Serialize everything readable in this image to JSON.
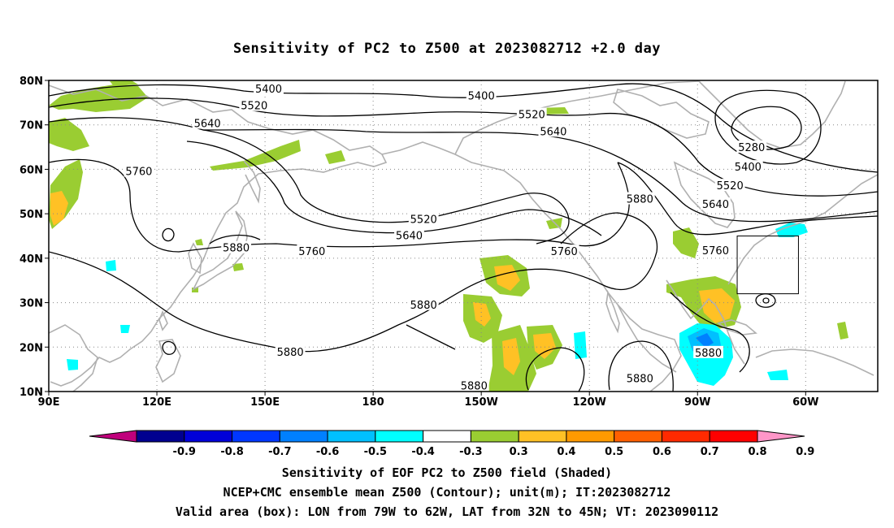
{
  "title": "Sensitivity of PC2 to Z500 at 2023082712 +2.0 day",
  "captions": [
    "Sensitivity of EOF PC2 to Z500 field (Shaded)",
    "NCEP+CMC ensemble mean Z500 (Contour); unit(m); IT:2023082712",
    "Valid area (box): LON from 79W to 62W, LAT from 32N to 45N; VT: 2023090112"
  ],
  "map": {
    "lon_range": [
      90,
      320
    ],
    "lat_range": [
      10,
      80
    ],
    "grid": "dotted",
    "lat_ticks": [
      {
        "lat": 80,
        "label": "80N"
      },
      {
        "lat": 70,
        "label": "70N"
      },
      {
        "lat": 60,
        "label": "60N"
      },
      {
        "lat": 50,
        "label": "50N"
      },
      {
        "lat": 40,
        "label": "40N"
      },
      {
        "lat": 30,
        "label": "30N"
      },
      {
        "lat": 20,
        "label": "20N"
      },
      {
        "lat": 10,
        "label": "10N"
      }
    ],
    "lon_ticks": [
      {
        "lon": 90,
        "label": "90E"
      },
      {
        "lon": 120,
        "label": "120E"
      },
      {
        "lon": 150,
        "label": "150E"
      },
      {
        "lon": 180,
        "label": "180"
      },
      {
        "lon": 210,
        "label": "150W"
      },
      {
        "lon": 240,
        "label": "120W"
      },
      {
        "lon": 270,
        "label": "90W"
      },
      {
        "lon": 300,
        "label": "60W"
      }
    ],
    "valid_box": {
      "lon": [
        281,
        298
      ],
      "lat": [
        32,
        45
      ]
    },
    "contour_labels": [
      {
        "text": "5400",
        "lon": 151,
        "lat": 78.2
      },
      {
        "text": "5400",
        "lon": 210,
        "lat": 76.6
      },
      {
        "text": "5520",
        "lon": 147,
        "lat": 74.4
      },
      {
        "text": "5520",
        "lon": 224,
        "lat": 72.4
      },
      {
        "text": "5640",
        "lon": 134,
        "lat": 70.4
      },
      {
        "text": "5640",
        "lon": 230,
        "lat": 68.6
      },
      {
        "text": "5760",
        "lon": 115,
        "lat": 59.6
      },
      {
        "text": "5520",
        "lon": 194,
        "lat": 48.8
      },
      {
        "text": "5640",
        "lon": 190,
        "lat": 45.2
      },
      {
        "text": "5760",
        "lon": 163,
        "lat": 41.6
      },
      {
        "text": "5760",
        "lon": 233,
        "lat": 41.6
      },
      {
        "text": "5880",
        "lon": 142,
        "lat": 42.4
      },
      {
        "text": "5880",
        "lon": 194,
        "lat": 29.6
      },
      {
        "text": "5880",
        "lon": 157,
        "lat": 19.0
      },
      {
        "text": "5880",
        "lon": 254,
        "lat": 53.4
      },
      {
        "text": "5880",
        "lon": 254,
        "lat": 13.0
      },
      {
        "text": "5880",
        "lon": 208,
        "lat": 11.4
      },
      {
        "text": "5880",
        "lon": 273,
        "lat": 18.8
      },
      {
        "text": "5280",
        "lon": 285,
        "lat": 65.0
      },
      {
        "text": "5400",
        "lon": 284,
        "lat": 60.6
      },
      {
        "text": "5520",
        "lon": 279,
        "lat": 56.4
      },
      {
        "text": "5640",
        "lon": 275,
        "lat": 52.2
      },
      {
        "text": "5760",
        "lon": 275,
        "lat": 41.8
      }
    ]
  },
  "colorbar": {
    "labels": [
      "-0.9",
      "-0.8",
      "-0.7",
      "-0.6",
      "-0.5",
      "-0.4",
      "-0.3",
      "0.3",
      "0.4",
      "0.5",
      "0.6",
      "0.7",
      "0.8",
      "0.9"
    ],
    "colors": [
      "#c0007c",
      "#00008f",
      "#0000d9",
      "#0037ff",
      "#0080ff",
      "#00c0ff",
      "#00ffff",
      "#ffffff",
      "#9acd32",
      "#ffc125",
      "#ff9a00",
      "#ff6000",
      "#ff2a00",
      "#ff0000",
      "#ff96c8"
    ]
  }
}
